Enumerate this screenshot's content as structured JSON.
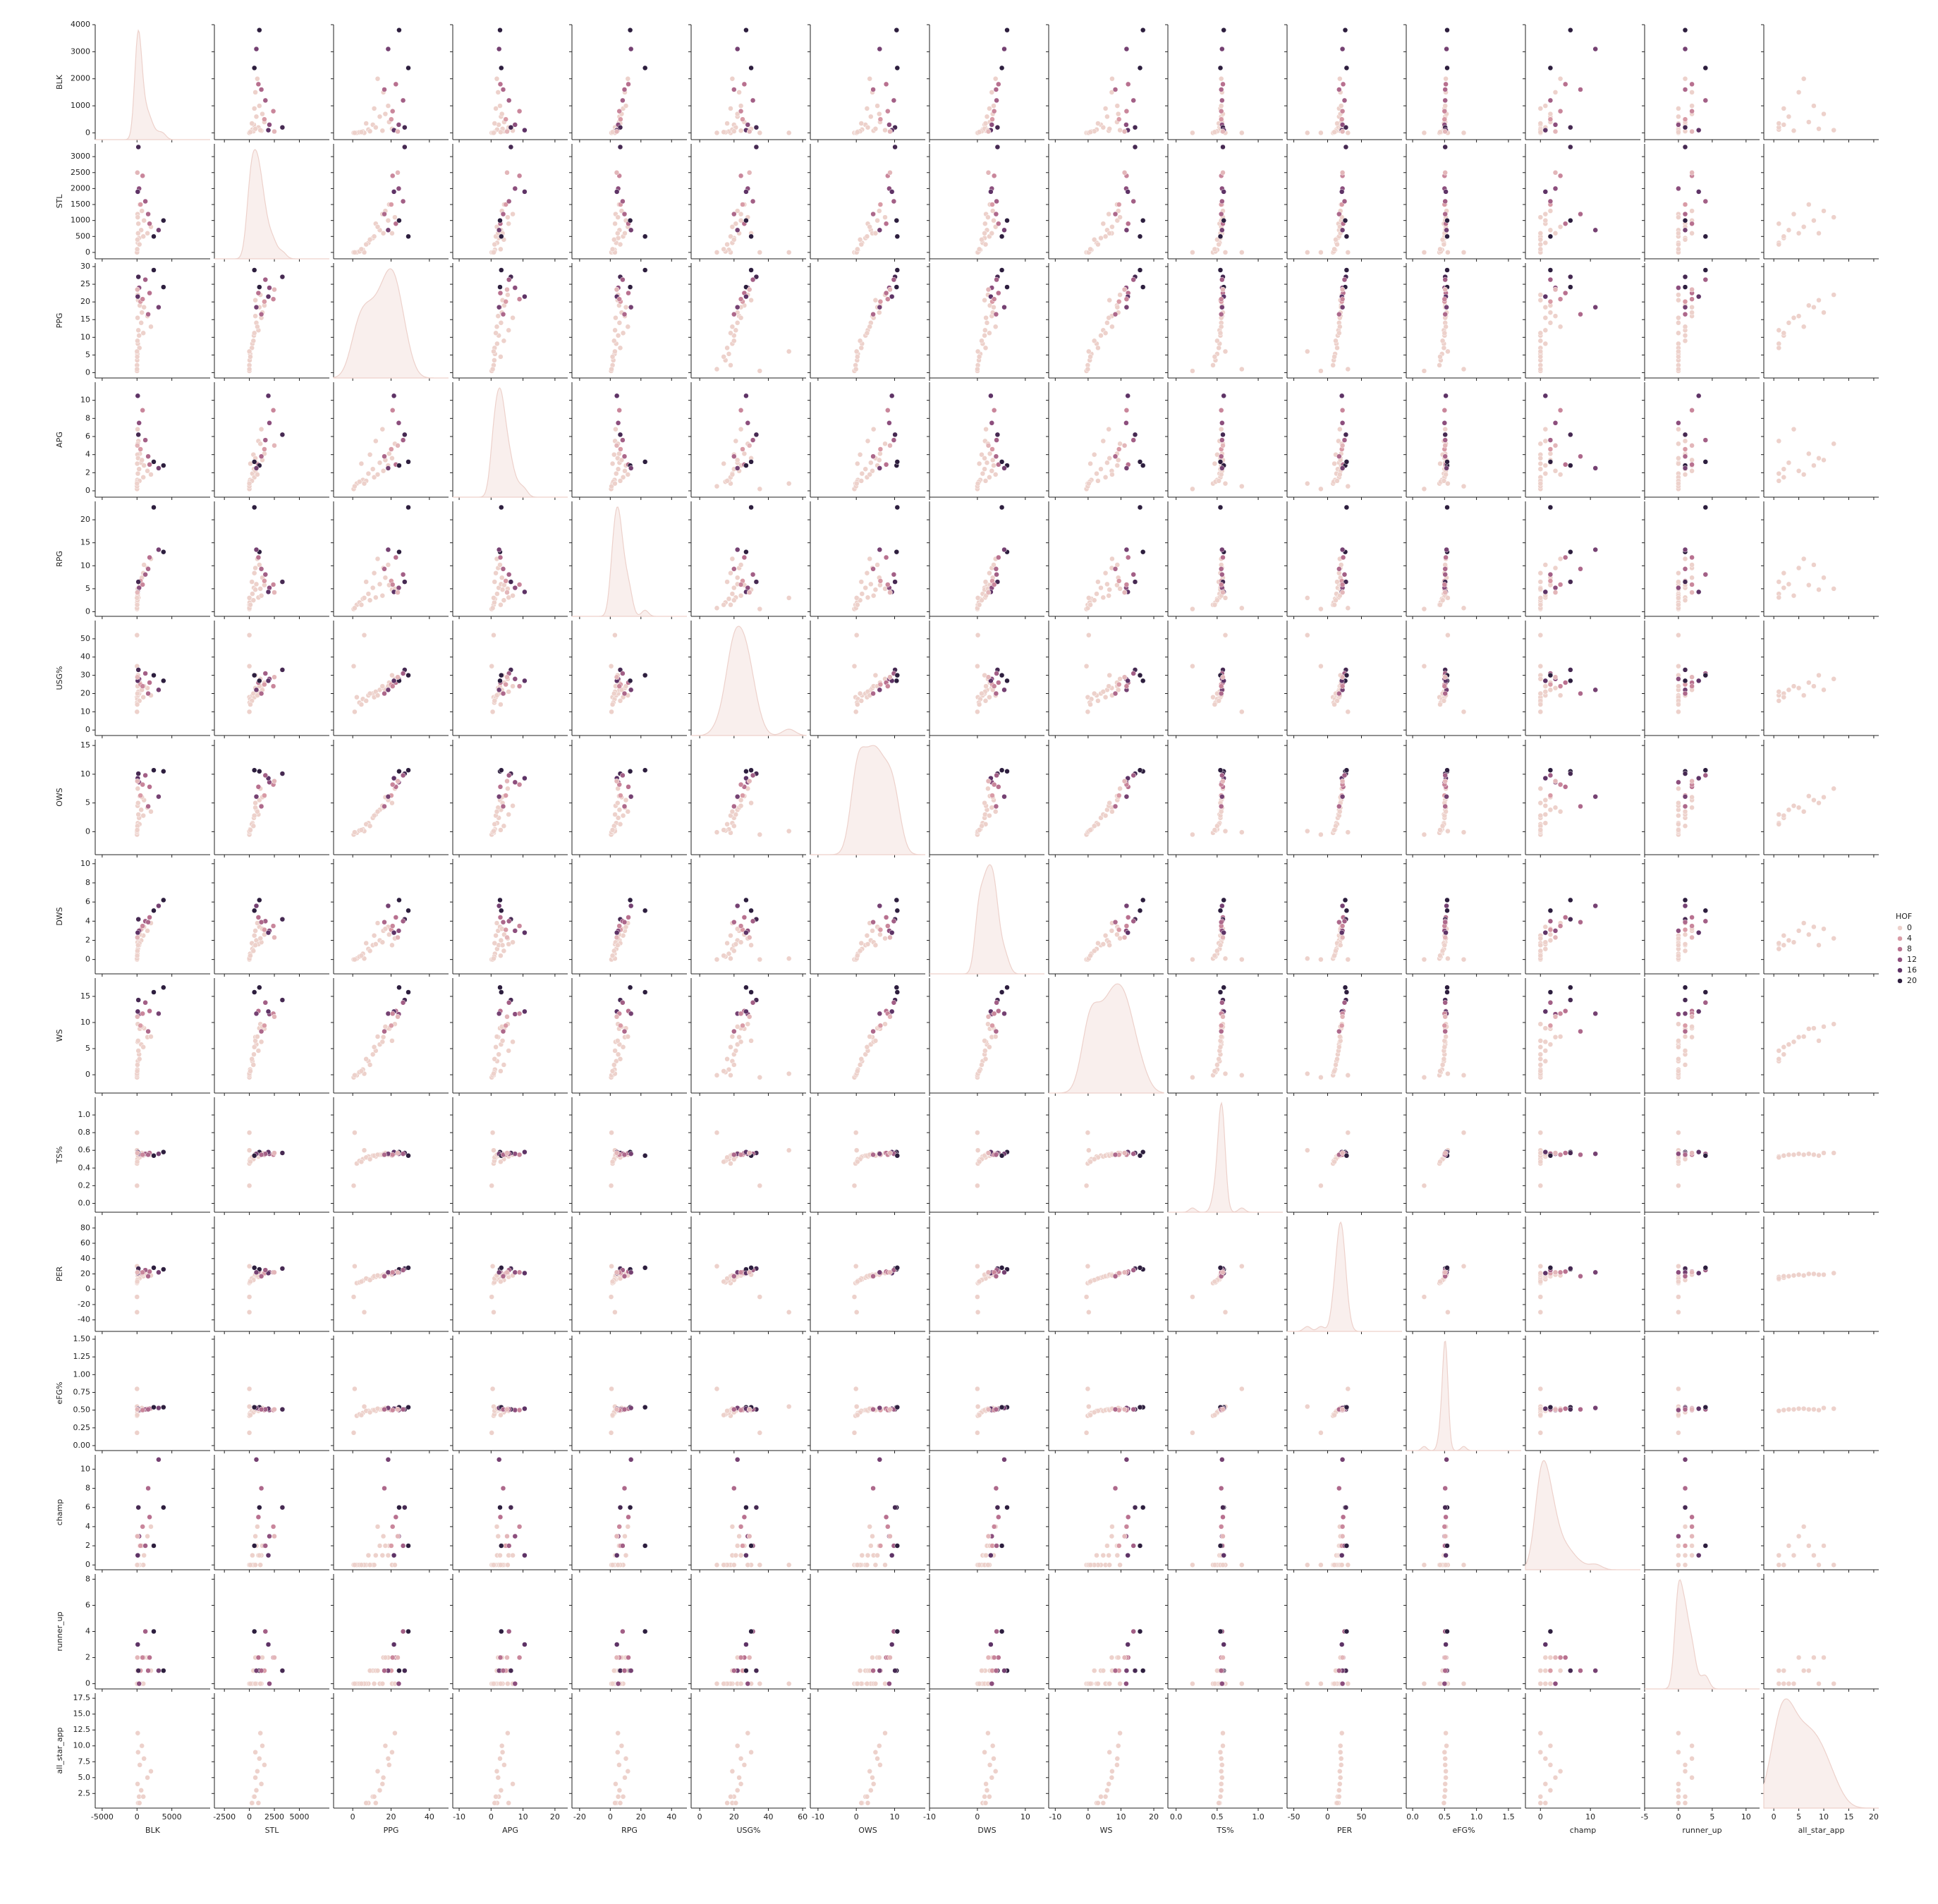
{
  "chart_data": {
    "type": "pairplot",
    "variables": [
      {
        "name": "BLK",
        "xlim": [
          -6000,
          10500
        ],
        "xticks": [
          -5000,
          0,
          5000
        ],
        "ylim": [
          -250,
          4000
        ],
        "yticks": [
          0,
          1000,
          2000,
          3000,
          4000
        ]
      },
      {
        "name": "STL",
        "xlim": [
          -3500,
          8000
        ],
        "xticks": [
          -2500,
          0,
          2500,
          5000
        ],
        "ylim": [
          -200,
          3400
        ],
        "yticks": [
          0,
          500,
          1000,
          1500,
          2000,
          2500,
          3000
        ]
      },
      {
        "name": "PPG",
        "xlim": [
          -10,
          50
        ],
        "xticks": [
          0,
          20,
          40
        ],
        "ylim": [
          -1.5,
          31
        ],
        "yticks": [
          0,
          5,
          10,
          15,
          20,
          25,
          30
        ]
      },
      {
        "name": "APG",
        "xlim": [
          -12,
          24
        ],
        "xticks": [
          -10,
          0,
          10,
          20
        ],
        "ylim": [
          -0.7,
          12
        ],
        "yticks": [
          0,
          2,
          4,
          6,
          8,
          10
        ]
      },
      {
        "name": "RPG",
        "xlim": [
          -25,
          50
        ],
        "xticks": [
          -20,
          0,
          20,
          40
        ],
        "ylim": [
          -1,
          24
        ],
        "yticks": [
          0,
          5,
          10,
          15,
          20
        ]
      },
      {
        "name": "USG%",
        "xlim": [
          -5,
          62
        ],
        "xticks": [
          0,
          20,
          40,
          60
        ],
        "ylim": [
          -3,
          60
        ],
        "yticks": [
          0,
          10,
          20,
          30,
          40,
          50
        ]
      },
      {
        "name": "OWS",
        "xlim": [
          -12,
          18
        ],
        "xticks": [
          -10,
          0,
          10
        ],
        "ylim": [
          -4,
          16
        ],
        "yticks": [
          0,
          5,
          10,
          15
        ]
      },
      {
        "name": "DWS",
        "xlim": [
          -10,
          14
        ],
        "xticks": [
          -10,
          0,
          10
        ],
        "ylim": [
          -1.5,
          10.5
        ],
        "yticks": [
          0,
          2,
          4,
          6,
          8,
          10
        ]
      },
      {
        "name": "WS",
        "xlim": [
          -12,
          23
        ],
        "xticks": [
          -10,
          0,
          10,
          20
        ],
        "ylim": [
          -3.5,
          18.5
        ],
        "yticks": [
          0,
          5,
          10,
          15
        ]
      },
      {
        "name": "TS%",
        "xlim": [
          -0.1,
          1.3
        ],
        "xticks": [
          {
            "value": 0,
            "label": "0.0"
          },
          0.5,
          {
            "value": 1,
            "label": "1.0"
          }
        ],
        "ylim": [
          -0.1,
          1.2
        ],
        "yticks": [
          {
            "value": 0,
            "label": "0.0"
          },
          0.2,
          0.4,
          0.6,
          0.8,
          {
            "value": 1,
            "label": "1.0"
          }
        ]
      },
      {
        "name": "PER",
        "xlim": [
          -60,
          110
        ],
        "xticks": [
          -50,
          0,
          50
        ],
        "ylim": [
          -55,
          95
        ],
        "yticks": [
          -40,
          -20,
          0,
          20,
          40,
          60,
          80
        ]
      },
      {
        "name": "eFG%",
        "xlim": [
          -0.1,
          1.7
        ],
        "xticks": [
          {
            "value": 0,
            "label": "0.0"
          },
          0.5,
          {
            "value": 1,
            "label": "1.0"
          },
          1.5
        ],
        "ylim": [
          -0.07,
          1.55
        ],
        "yticks": [
          {
            "value": 0,
            "label": "0.00"
          },
          {
            "value": 0.25,
            "label": "0.25"
          },
          {
            "value": 0.5,
            "label": "0.50"
          },
          {
            "value": 0.75,
            "label": "0.75"
          },
          {
            "value": 1,
            "label": "1.00"
          },
          {
            "value": 1.25,
            "label": "1.25"
          },
          {
            "value": 1.5,
            "label": "1.50"
          }
        ]
      },
      {
        "name": "champ",
        "xlim": [
          -3,
          20
        ],
        "xticks": [
          0,
          10
        ],
        "ylim": [
          -0.5,
          11.5
        ],
        "yticks": [
          0,
          2,
          4,
          6,
          8,
          10
        ]
      },
      {
        "name": "runner_up",
        "xlim": [
          -5,
          12
        ],
        "xticks": [
          -5,
          0,
          5,
          10
        ],
        "ylim": [
          -0.4,
          8.4
        ],
        "yticks": [
          0,
          2,
          4,
          6,
          8
        ]
      },
      {
        "name": "all_star_app",
        "xlim": [
          -2,
          21
        ],
        "xticks": [
          0,
          5,
          10,
          15,
          20
        ],
        "ylim": [
          0.2,
          18.3
        ],
        "yticks": [
          {
            "value": 2.5,
            "label": "2.5"
          },
          {
            "value": 5,
            "label": "5.0"
          },
          {
            "value": 7.5,
            "label": "7.5"
          },
          {
            "value": 10,
            "label": "10.0"
          },
          {
            "value": 12.5,
            "label": "12.5"
          },
          {
            "value": 15,
            "label": "15.0"
          },
          {
            "value": 17.5,
            "label": "17.5"
          }
        ]
      }
    ],
    "hue": {
      "name": "HOF",
      "levels": [
        0,
        4,
        8,
        12,
        16,
        20
      ],
      "colors": [
        "#edd1cb",
        "#d99ba6",
        "#b8708f",
        "#8c4e7d",
        "#5e3366",
        "#2d1e3e"
      ]
    },
    "legend": "right",
    "points": [
      {
        "values": [
          0,
          0,
          2.1,
          0.8,
          1.5,
          18,
          -0.2,
          0.1,
          -0.1,
          0.45,
          8,
          0.42,
          0,
          0,
          null
        ],
        "hue": 0
      },
      {
        "values": [
          50,
          80,
          5.3,
          1.2,
          2.8,
          17,
          0.4,
          0.6,
          1.0,
          0.5,
          11,
          0.46,
          0,
          0,
          null
        ],
        "hue": 0
      },
      {
        "values": [
          120,
          300,
          8.2,
          1.9,
          3.9,
          19,
          1.5,
          1.1,
          2.6,
          0.53,
          13,
          0.49,
          1,
          0,
          1
        ],
        "hue": 0
      },
      {
        "values": [
          300,
          450,
          10.5,
          2.4,
          5.2,
          20,
          2.4,
          1.5,
          3.9,
          0.54,
          15,
          0.5,
          0,
          1,
          2
        ],
        "hue": 0
      },
      {
        "values": [
          600,
          700,
          14.1,
          3.1,
          6.0,
          22,
          3.8,
          2.0,
          5.8,
          0.55,
          17,
          0.51,
          2,
          0,
          3
        ],
        "hue": 0
      },
      {
        "values": [
          200,
          900,
          12.0,
          5.5,
          3.1,
          21,
          3.0,
          1.6,
          4.6,
          0.53,
          16,
          0.49,
          1,
          1,
          1
        ],
        "hue": 0
      },
      {
        "values": [
          900,
          500,
          11.2,
          1.5,
          8.4,
          18,
          2.8,
          2.5,
          5.3,
          0.54,
          17,
          0.5,
          0,
          0,
          2
        ],
        "hue": 0
      },
      {
        "values": [
          1500,
          600,
          16.0,
          2.2,
          9.5,
          23,
          4.2,
          3.0,
          7.2,
          0.56,
          19,
          0.52,
          3,
          2,
          5
        ],
        "hue": 0
      },
      {
        "values": [
          80,
          1200,
          15.5,
          6.8,
          3.5,
          24,
          4.5,
          1.8,
          6.3,
          0.55,
          18,
          0.51,
          1,
          0,
          4
        ],
        "hue": 0
      },
      {
        "values": [
          0,
          0,
          0.5,
          0.2,
          0.6,
          35,
          -0.5,
          0.0,
          -0.5,
          0.2,
          -10,
          0.18,
          0,
          0,
          null
        ],
        "hue": 0
      },
      {
        "values": [
          0,
          0,
          1.0,
          0.5,
          0.8,
          10,
          -0.1,
          0.0,
          -0.1,
          0.8,
          30,
          0.8,
          0,
          0,
          null
        ],
        "hue": 0
      },
      {
        "values": [
          20,
          30,
          3.5,
          1.0,
          2.0,
          15,
          0.2,
          0.3,
          0.5,
          0.48,
          9,
          0.44,
          0,
          0,
          null
        ],
        "hue": 0
      },
      {
        "values": [
          400,
          1500,
          19.0,
          4.1,
          5.8,
          26,
          6.2,
          2.6,
          8.8,
          0.56,
          20,
          0.51,
          2,
          1,
          7
        ],
        "hue": 0
      },
      {
        "values": [
          1000,
          1000,
          18.5,
          2.8,
          10.2,
          24,
          5.5,
          3.4,
          8.9,
          0.55,
          20,
          0.51,
          1,
          2,
          8
        ],
        "hue": 0
      },
      {
        "values": [
          350,
          250,
          7.0,
          1.1,
          6.5,
          16,
          1.3,
          1.7,
          3.0,
          0.52,
          14,
          0.49,
          0,
          0,
          1
        ],
        "hue": 0
      },
      {
        "values": [
          60,
          400,
          9.0,
          4.0,
          2.5,
          20,
          1.0,
          0.9,
          1.9,
          0.5,
          12,
          0.47,
          0,
          1,
          null
        ],
        "hue": 0
      },
      {
        "values": [
          0,
          0,
          6.0,
          0.8,
          3.0,
          52,
          0.1,
          0.1,
          0.2,
          0.6,
          -30,
          0.55,
          0,
          0,
          null
        ],
        "hue": 0
      },
      {
        "values": [
          150,
          600,
          20.5,
          3.6,
          4.8,
          30,
          5.0,
          1.5,
          6.5,
          0.54,
          19,
          0.5,
          0,
          0,
          9
        ],
        "hue": 0
      },
      {
        "values": [
          2000,
          800,
          13.0,
          1.8,
          11.5,
          19,
          3.5,
          3.8,
          7.3,
          0.55,
          18,
          0.52,
          4,
          1,
          6
        ],
        "hue": 0
      },
      {
        "values": [
          100,
          1100,
          22.0,
          5.2,
          5.0,
          28,
          7.5,
          2.2,
          9.7,
          0.57,
          21,
          0.52,
          0,
          0,
          12
        ],
        "hue": 0
      },
      {
        "values": [
          30,
          100,
          4.5,
          3.0,
          1.5,
          14,
          0.3,
          0.4,
          0.7,
          0.47,
          10,
          0.43,
          0,
          0,
          null
        ],
        "hue": 0
      },
      {
        "values": [
          700,
          1300,
          17.0,
          3.4,
          7.4,
          22,
          6.0,
          3.2,
          9.2,
          0.57,
          19,
          0.53,
          2,
          2,
          10
        ],
        "hue": 0
      },
      {
        "values": [
          500,
          1500,
          20.1,
          4.6,
          6.7,
          25,
          6.3,
          3.1,
          9.4,
          0.55,
          21,
          0.5,
          2,
          1,
          null
        ],
        "hue": 4
      },
      {
        "values": [
          1800,
          900,
          22.5,
          2.9,
          11.8,
          26,
          7.8,
          4.4,
          12.2,
          0.57,
          23,
          0.52,
          5,
          2,
          null
        ],
        "hue": 8
      },
      {
        "values": [
          300,
          2000,
          24.0,
          7.5,
          5.2,
          28,
          8.6,
          3.0,
          11.6,
          0.56,
          22,
          0.5,
          3,
          0,
          null
        ],
        "hue": 12
      },
      {
        "values": [
          3800,
          1000,
          24.2,
          2.8,
          13.0,
          27,
          10.5,
          6.2,
          16.7,
          0.58,
          26,
          0.54,
          6,
          1,
          null
        ],
        "hue": 20
      },
      {
        "values": [
          200,
          3300,
          27.1,
          6.2,
          6.5,
          33,
          10.1,
          4.2,
          14.3,
          0.57,
          27,
          0.51,
          6,
          1,
          null
        ],
        "hue": 18
      },
      {
        "values": [
          100,
          1900,
          21.5,
          10.5,
          4.3,
          27,
          9.3,
          2.8,
          12.1,
          0.58,
          21,
          0.52,
          1,
          3,
          null
        ],
        "hue": 16
      },
      {
        "values": [
          3100,
          700,
          18.5,
          2.5,
          13.5,
          22,
          6.1,
          5.6,
          11.7,
          0.56,
          22,
          0.53,
          11,
          1,
          null
        ],
        "hue": 14
      },
      {
        "values": [
          1200,
          1600,
          26.3,
          5.6,
          8.1,
          31,
          9.8,
          4.0,
          13.8,
          0.56,
          25,
          0.51,
          2,
          4,
          null
        ],
        "hue": 10
      },
      {
        "values": [
          800,
          2400,
          20.8,
          8.9,
          5.9,
          24,
          8.2,
          3.5,
          11.7,
          0.55,
          22,
          0.5,
          4,
          2,
          null
        ],
        "hue": 6
      },
      {
        "values": [
          2400,
          500,
          29.0,
          3.2,
          22.7,
          30,
          10.7,
          5.1,
          15.8,
          0.54,
          28,
          0.54,
          2,
          4,
          null
        ],
        "hue": 20
      },
      {
        "values": [
          1600,
          1200,
          16.5,
          3.8,
          9.3,
          20,
          4.4,
          3.9,
          8.3,
          0.55,
          17,
          0.51,
          8,
          1,
          null
        ],
        "hue": 9
      },
      {
        "values": [
          50,
          2500,
          23.5,
          5.0,
          4.2,
          29,
          8.8,
          2.3,
          11.1,
          0.57,
          22,
          0.51,
          3,
          2,
          null
        ],
        "hue": 2
      }
    ]
  }
}
